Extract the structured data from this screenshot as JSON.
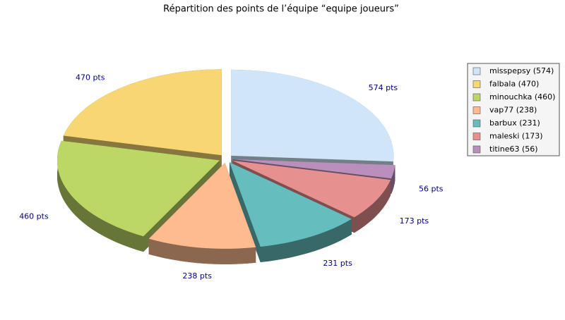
{
  "chart_data": {
    "type": "pie",
    "title": "Répartition des points de l’équipe “equipe joueurs”",
    "categories": [
      "misspepsy (574)",
      "falbala (470)",
      "minouchka (460)",
      "vap77 (238)",
      "barbux (231)",
      "maleski (173)",
      "titine63 (56)"
    ],
    "values": [
      574,
      470,
      460,
      238,
      231,
      173,
      56
    ],
    "value_labels": [
      "574 pts",
      "470 pts",
      "460 pts",
      "238 pts",
      "231 pts",
      "173 pts",
      "56 pts"
    ],
    "colors": [
      "#d0e6f8",
      "#f7d673",
      "#bcd766",
      "#fdbb8f",
      "#66bdbd",
      "#e69090",
      "#bb8fbb"
    ],
    "legend": "right"
  }
}
